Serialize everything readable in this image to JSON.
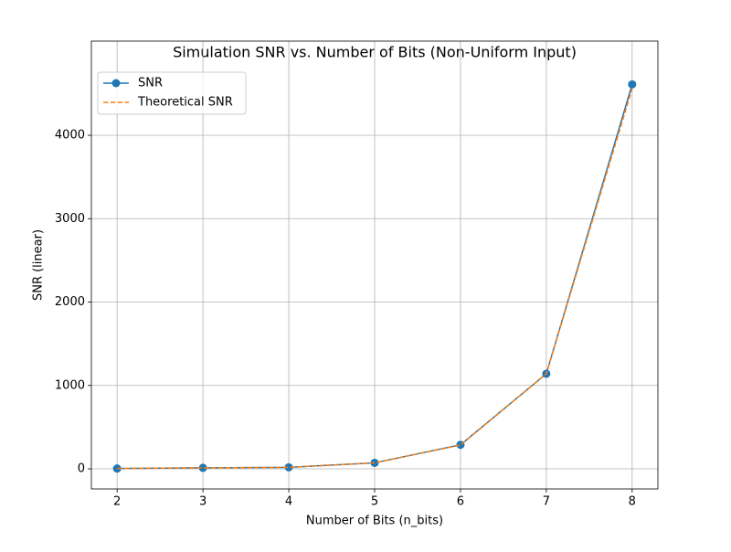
{
  "chart_data": {
    "type": "line",
    "title": "Simulation SNR vs. Number of Bits (Non-Uniform Input)",
    "xlabel": "Number of Bits (n_bits)",
    "ylabel": "SNR (linear)",
    "x": [
      2,
      3,
      4,
      5,
      6,
      7,
      8
    ],
    "series": [
      {
        "name": "SNR",
        "color": "#1f77b4",
        "style": "solid",
        "marker": "o",
        "values": [
          4,
          12,
          18,
          72,
          288,
          1140,
          4610
        ]
      },
      {
        "name": "Theoretical SNR",
        "color": "#ff7f0e",
        "style": "dashed",
        "marker": null,
        "values": [
          4,
          12,
          18,
          72,
          285,
          1140,
          4560
        ]
      }
    ],
    "xlim": [
      1.7,
      8.3
    ],
    "xticks": [
      2,
      3,
      4,
      5,
      6,
      7,
      8
    ],
    "ylim": [
      -241,
      5129
    ],
    "yticks": [
      0,
      1000,
      2000,
      3000,
      4000
    ],
    "grid": true,
    "legend": "upper left"
  }
}
